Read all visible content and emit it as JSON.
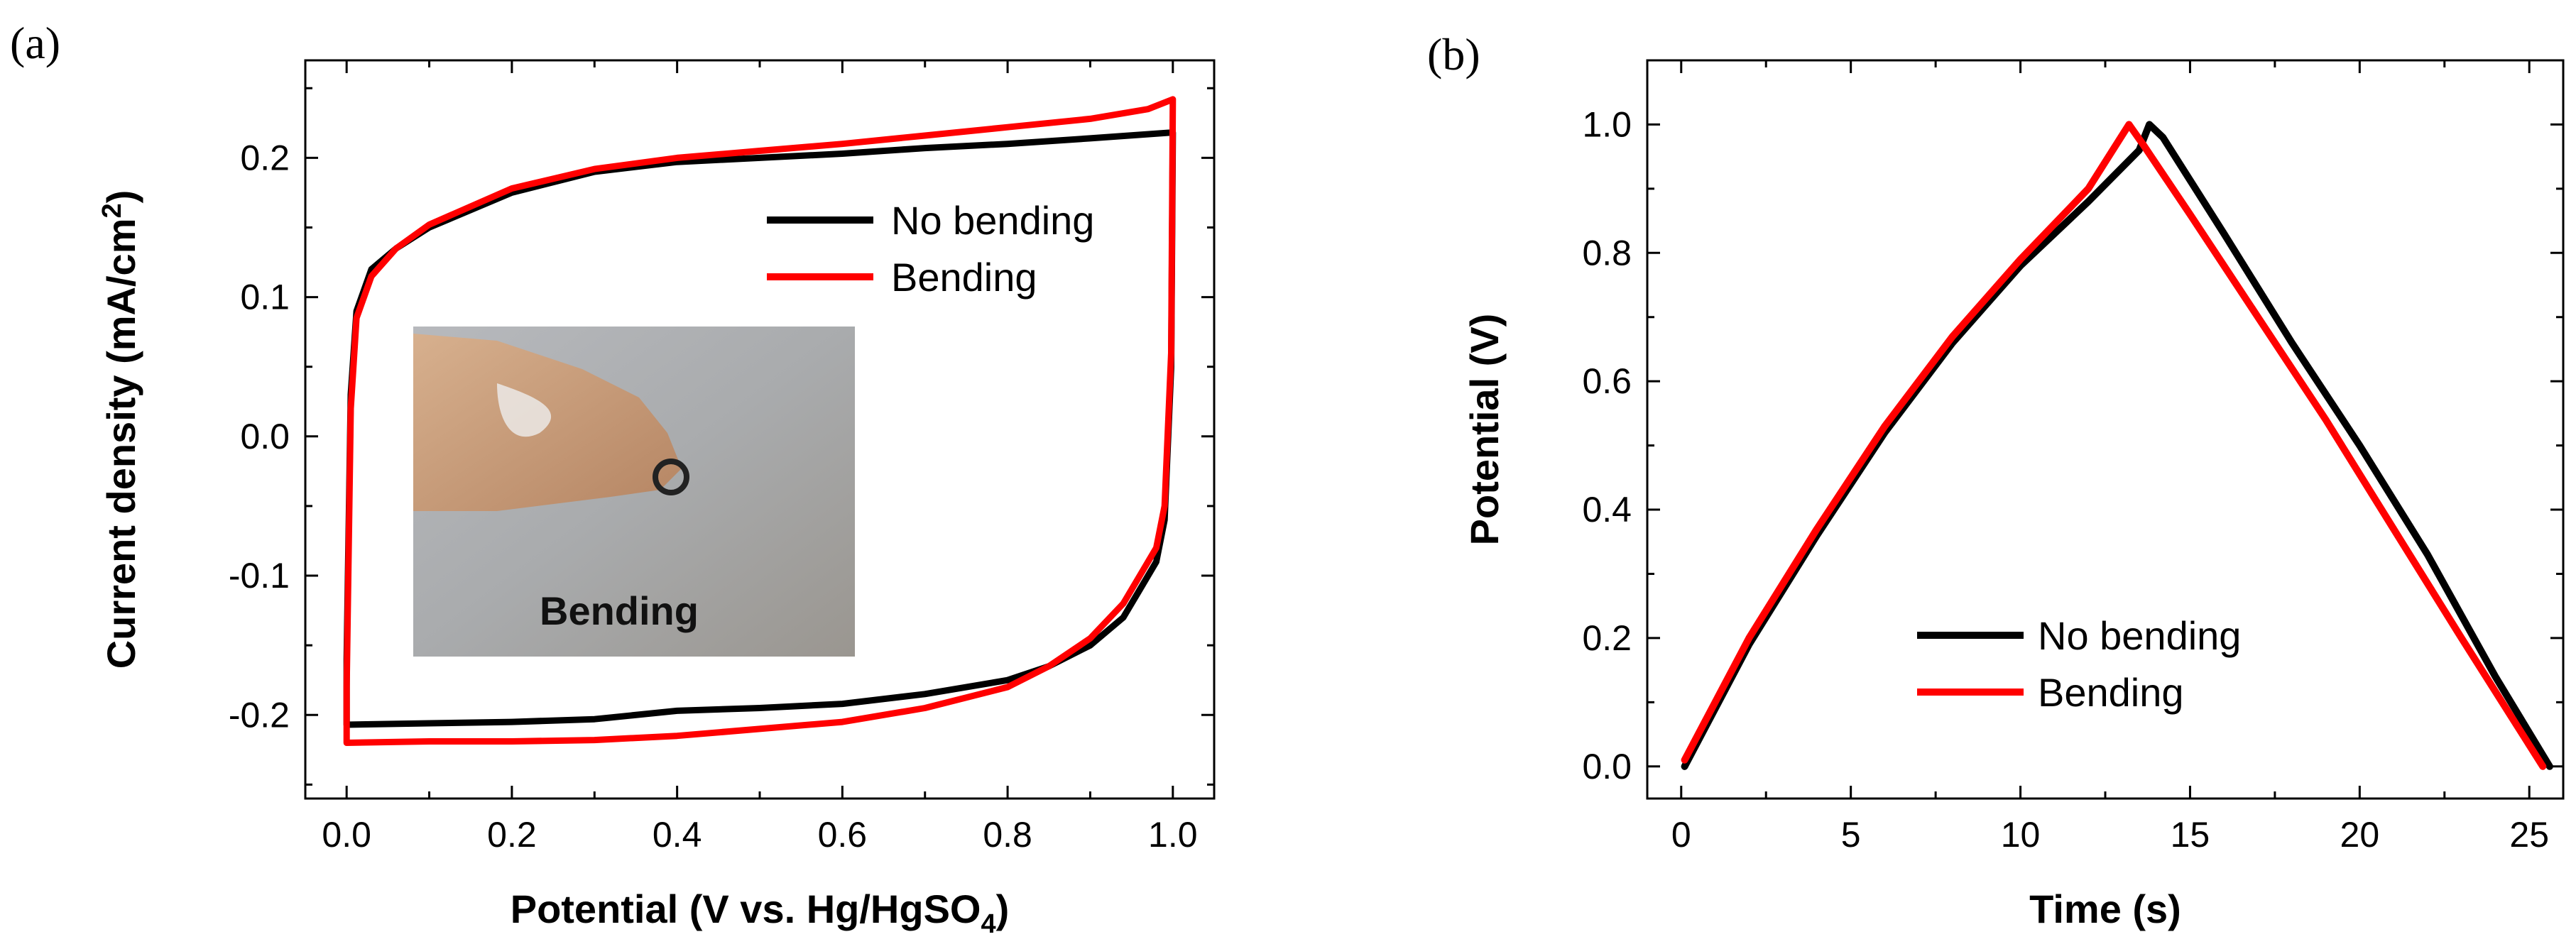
{
  "chart_data": [
    {
      "type": "line",
      "panel_label": "(a)",
      "xlabel": "Potential (V vs. Hg/HgSO",
      "xlabel_sub": "4",
      "xlabel_end": ")",
      "ylabel": "Current density (mA/cm",
      "ylabel_sup": "2",
      "ylabel_end": ")",
      "xlim": [
        -0.05,
        1.05
      ],
      "ylim": [
        -0.26,
        0.27
      ],
      "xticks": [
        0.0,
        0.2,
        0.4,
        0.6,
        0.8,
        1.0
      ],
      "xtick_labels": [
        "0.0",
        "0.2",
        "0.4",
        "0.6",
        "0.8",
        "1.0"
      ],
      "yticks": [
        -0.2,
        -0.1,
        0.0,
        0.1,
        0.2
      ],
      "ytick_labels": [
        "-0.2",
        "-0.1",
        "0.0",
        "0.1",
        "0.2"
      ],
      "legend_position": "top-right",
      "inset_label": "Bending",
      "series": [
        {
          "name": "No bending",
          "color": "#000000",
          "upper": [
            [
              0.0,
              -0.16
            ],
            [
              0.005,
              0.03
            ],
            [
              0.012,
              0.09
            ],
            [
              0.03,
              0.12
            ],
            [
              0.06,
              0.135
            ],
            [
              0.1,
              0.15
            ],
            [
              0.2,
              0.175
            ],
            [
              0.3,
              0.19
            ],
            [
              0.4,
              0.197
            ],
            [
              0.5,
              0.2
            ],
            [
              0.6,
              0.203
            ],
            [
              0.7,
              0.207
            ],
            [
              0.8,
              0.21
            ],
            [
              0.9,
              0.214
            ],
            [
              0.995,
              0.218
            ],
            [
              1.0,
              0.218
            ]
          ],
          "lower": [
            [
              1.0,
              0.218
            ],
            [
              0.998,
              0.05
            ],
            [
              0.99,
              -0.06
            ],
            [
              0.98,
              -0.09
            ],
            [
              0.96,
              -0.11
            ],
            [
              0.94,
              -0.13
            ],
            [
              0.9,
              -0.15
            ],
            [
              0.85,
              -0.165
            ],
            [
              0.8,
              -0.175
            ],
            [
              0.7,
              -0.185
            ],
            [
              0.6,
              -0.192
            ],
            [
              0.5,
              -0.195
            ],
            [
              0.4,
              -0.197
            ],
            [
              0.3,
              -0.203
            ],
            [
              0.2,
              -0.205
            ],
            [
              0.1,
              -0.206
            ],
            [
              0.0,
              -0.207
            ],
            [
              0.0,
              -0.16
            ]
          ]
        },
        {
          "name": "Bending",
          "color": "#ff0000",
          "upper": [
            [
              0.0,
              -0.18
            ],
            [
              0.005,
              0.02
            ],
            [
              0.012,
              0.085
            ],
            [
              0.03,
              0.115
            ],
            [
              0.06,
              0.135
            ],
            [
              0.1,
              0.152
            ],
            [
              0.2,
              0.178
            ],
            [
              0.3,
              0.192
            ],
            [
              0.4,
              0.2
            ],
            [
              0.5,
              0.205
            ],
            [
              0.6,
              0.21
            ],
            [
              0.7,
              0.216
            ],
            [
              0.8,
              0.222
            ],
            [
              0.9,
              0.228
            ],
            [
              0.97,
              0.235
            ],
            [
              1.0,
              0.242
            ]
          ],
          "lower": [
            [
              1.0,
              0.242
            ],
            [
              0.998,
              0.06
            ],
            [
              0.99,
              -0.05
            ],
            [
              0.98,
              -0.08
            ],
            [
              0.96,
              -0.1
            ],
            [
              0.94,
              -0.12
            ],
            [
              0.9,
              -0.145
            ],
            [
              0.85,
              -0.165
            ],
            [
              0.8,
              -0.18
            ],
            [
              0.7,
              -0.195
            ],
            [
              0.6,
              -0.205
            ],
            [
              0.5,
              -0.21
            ],
            [
              0.4,
              -0.215
            ],
            [
              0.3,
              -0.218
            ],
            [
              0.2,
              -0.219
            ],
            [
              0.1,
              -0.219
            ],
            [
              0.0,
              -0.22
            ],
            [
              0.0,
              -0.18
            ]
          ]
        }
      ]
    },
    {
      "type": "line",
      "panel_label": "(b)",
      "xlabel": "Time (s)",
      "ylabel": "Potential (V)",
      "xlim": [
        -1,
        26
      ],
      "ylim": [
        -0.05,
        1.1
      ],
      "xticks": [
        0,
        5,
        10,
        15,
        20,
        25
      ],
      "xtick_labels": [
        "0",
        "5",
        "10",
        "15",
        "20",
        "25"
      ],
      "yticks": [
        0.0,
        0.2,
        0.4,
        0.6,
        0.8,
        1.0
      ],
      "ytick_labels": [
        "0.0",
        "0.2",
        "0.4",
        "0.6",
        "0.8",
        "1.0"
      ],
      "legend_position": "bottom-center",
      "series": [
        {
          "name": "No bending",
          "color": "#000000",
          "points": [
            [
              0.1,
              0.0
            ],
            [
              2,
              0.19
            ],
            [
              4,
              0.36
            ],
            [
              6,
              0.52
            ],
            [
              8,
              0.66
            ],
            [
              10,
              0.78
            ],
            [
              12,
              0.88
            ],
            [
              13.5,
              0.96
            ],
            [
              13.8,
              1.0
            ],
            [
              14.2,
              0.98
            ],
            [
              16,
              0.83
            ],
            [
              18,
              0.66
            ],
            [
              20,
              0.5
            ],
            [
              22,
              0.33
            ],
            [
              24,
              0.14
            ],
            [
              25.6,
              0.0
            ]
          ]
        },
        {
          "name": "Bending",
          "color": "#ff0000",
          "points": [
            [
              0.1,
              0.01
            ],
            [
              2,
              0.2
            ],
            [
              4,
              0.37
            ],
            [
              6,
              0.53
            ],
            [
              8,
              0.67
            ],
            [
              10,
              0.79
            ],
            [
              12,
              0.9
            ],
            [
              13.2,
              1.0
            ],
            [
              13.6,
              0.97
            ],
            [
              15,
              0.86
            ],
            [
              17,
              0.7
            ],
            [
              19,
              0.54
            ],
            [
              21,
              0.37
            ],
            [
              23,
              0.2
            ],
            [
              25.4,
              0.0
            ]
          ]
        }
      ]
    }
  ]
}
